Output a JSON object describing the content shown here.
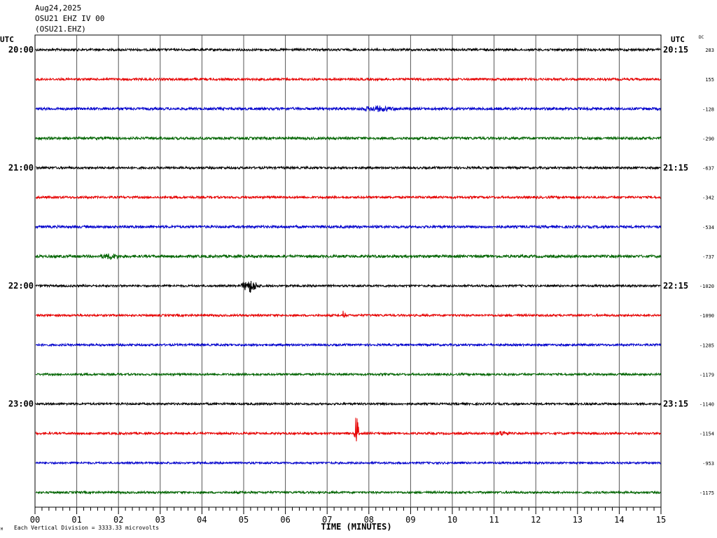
{
  "header": {
    "date": "Aug24,2025",
    "station": "OSU21 EHZ IV 00",
    "channel": "(OSU21.EHZ)"
  },
  "left_axis_label": "UTC",
  "right_axis_label": "UTC",
  "dc_label": "DC",
  "footer_mark": "M",
  "footer_note": "Each Vertical Division = 3333.33 microvolts",
  "chart_data": {
    "type": "line",
    "xlabel": "TIME (MINUTES)",
    "xlim": [
      0,
      15
    ],
    "x_ticks": [
      "00",
      "01",
      "02",
      "03",
      "04",
      "05",
      "06",
      "07",
      "08",
      "09",
      "10",
      "11",
      "12",
      "13",
      "14",
      "15"
    ],
    "colors": [
      "#000000",
      "#e60000",
      "#0000cc",
      "#006400"
    ],
    "left_times": [
      "20:00",
      "21:00",
      "22:00",
      "23:00"
    ],
    "right_times": [
      "20:15",
      "21:15",
      "22:15",
      "23:15"
    ],
    "traces": [
      {
        "dc": "283",
        "noise": 1.6,
        "events": []
      },
      {
        "dc": "155",
        "noise": 1.6,
        "events": []
      },
      {
        "dc": "-128",
        "noise": 1.8,
        "events": [
          {
            "t": 8.2,
            "amp": 3,
            "dur": 0.5,
            "kind": "burst"
          }
        ]
      },
      {
        "dc": "-290",
        "noise": 1.8,
        "events": []
      },
      {
        "dc": "-637",
        "noise": 1.6,
        "events": []
      },
      {
        "dc": "-342",
        "noise": 1.6,
        "events": []
      },
      {
        "dc": "-534",
        "noise": 1.8,
        "events": []
      },
      {
        "dc": "-737",
        "noise": 1.9,
        "events": [
          {
            "t": 1.8,
            "amp": 3,
            "dur": 0.3,
            "kind": "burst"
          }
        ]
      },
      {
        "dc": "-1020",
        "noise": 1.5,
        "events": [
          {
            "t": 5.15,
            "amp": 9,
            "dur": 0.25,
            "kind": "burst"
          }
        ]
      },
      {
        "dc": "-1090",
        "noise": 1.5,
        "events": [
          {
            "t": 7.4,
            "amp": 8,
            "dur": 0.05,
            "kind": "spike"
          }
        ]
      },
      {
        "dc": "-1285",
        "noise": 1.5,
        "events": []
      },
      {
        "dc": "-1179",
        "noise": 1.5,
        "events": []
      },
      {
        "dc": "-1140",
        "noise": 1.5,
        "events": []
      },
      {
        "dc": "-1154",
        "noise": 1.5,
        "events": [
          {
            "t": 7.7,
            "amp": 26,
            "dur": 0.08,
            "kind": "spike"
          },
          {
            "t": 11.2,
            "amp": 3,
            "dur": 0.2,
            "kind": "burst"
          }
        ]
      },
      {
        "dc": "-953",
        "noise": 1.4,
        "events": []
      },
      {
        "dc": "-1175",
        "noise": 1.5,
        "events": []
      }
    ]
  }
}
